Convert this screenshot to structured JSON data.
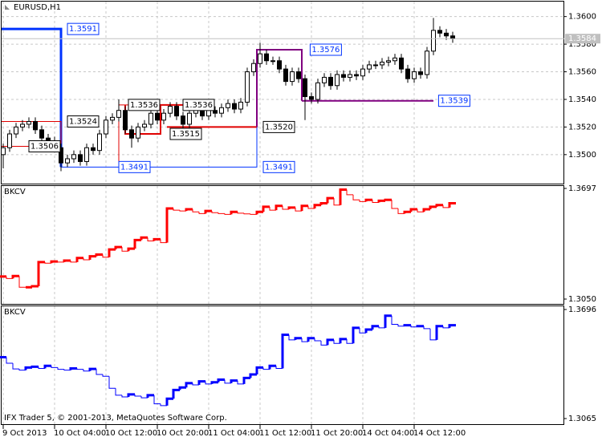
{
  "chart_data": [
    {
      "type": "candlestick",
      "title": "EURUSD,H1",
      "open": [
        1.35,
        1.3505,
        1.3515,
        1.352,
        1.3522,
        1.3524,
        1.3518,
        1.3512,
        1.351,
        1.3505,
        1.3494,
        1.3497,
        1.35,
        1.3495,
        1.3505,
        1.3503,
        1.3515,
        1.3525,
        1.3527,
        1.3532,
        1.3518,
        1.3512,
        1.352,
        1.3522,
        1.353,
        1.3525,
        1.353,
        1.3535,
        1.3528,
        1.3522,
        1.353,
        1.3533,
        1.3528,
        1.3532,
        1.353,
        1.3534,
        1.3537,
        1.3533,
        1.3538,
        1.356,
        1.3566,
        1.3573,
        1.3568,
        1.3568,
        1.3562,
        1.3553,
        1.356,
        1.3555,
        1.3542,
        1.354,
        1.3552,
        1.3556,
        1.355,
        1.3558,
        1.3556,
        1.3558,
        1.3557,
        1.3562,
        1.3565,
        1.3565,
        1.3567,
        1.3568,
        1.357,
        1.3562,
        1.3555,
        1.356,
        1.3558,
        1.3575,
        1.359,
        1.3588,
        1.3586
      ],
      "high": [
        1.3508,
        1.3518,
        1.3523,
        1.3525,
        1.3527,
        1.3527,
        1.3521,
        1.3515,
        1.3513,
        1.3508,
        1.35,
        1.3503,
        1.3503,
        1.3508,
        1.3508,
        1.3518,
        1.3528,
        1.353,
        1.354,
        1.3535,
        1.3521,
        1.3523,
        1.3525,
        1.3538,
        1.3533,
        1.3533,
        1.3538,
        1.3538,
        1.3531,
        1.3533,
        1.3536,
        1.3536,
        1.3535,
        1.3535,
        1.3537,
        1.354,
        1.354,
        1.3541,
        1.3563,
        1.3569,
        1.3581,
        1.3576,
        1.3571,
        1.3571,
        1.3565,
        1.3563,
        1.3563,
        1.3558,
        1.3545,
        1.3555,
        1.3559,
        1.3559,
        1.3561,
        1.3561,
        1.3561,
        1.3561,
        1.3565,
        1.3568,
        1.3568,
        1.357,
        1.3571,
        1.3573,
        1.3573,
        1.3565,
        1.3563,
        1.3563,
        1.3578,
        1.3599,
        1.3593,
        1.3591,
        1.3589
      ],
      "low": [
        1.349,
        1.3502,
        1.3512,
        1.3517,
        1.3519,
        1.3515,
        1.3509,
        1.3507,
        1.3502,
        1.3488,
        1.3491,
        1.3494,
        1.3492,
        1.3492,
        1.35,
        1.35,
        1.3512,
        1.3522,
        1.3524,
        1.3515,
        1.3505,
        1.3509,
        1.3517,
        1.3519,
        1.3522,
        1.3522,
        1.3527,
        1.3525,
        1.3519,
        1.3519,
        1.3527,
        1.3525,
        1.3525,
        1.3527,
        1.3527,
        1.3531,
        1.353,
        1.353,
        1.3535,
        1.3557,
        1.3563,
        1.3565,
        1.3565,
        1.3559,
        1.355,
        1.355,
        1.3552,
        1.3525,
        1.3537,
        1.3537,
        1.3549,
        1.3547,
        1.3547,
        1.3553,
        1.3553,
        1.3554,
        1.3554,
        1.3559,
        1.3562,
        1.3562,
        1.3564,
        1.3565,
        1.3559,
        1.3552,
        1.3552,
        1.3555,
        1.3555,
        1.3572,
        1.3585,
        1.3583,
        1.3581
      ],
      "close": [
        1.3505,
        1.3515,
        1.352,
        1.3522,
        1.3524,
        1.3518,
        1.3512,
        1.351,
        1.3505,
        1.3494,
        1.3497,
        1.35,
        1.3495,
        1.3505,
        1.3503,
        1.3515,
        1.3525,
        1.3527,
        1.3532,
        1.3518,
        1.3512,
        1.352,
        1.3522,
        1.353,
        1.3525,
        1.353,
        1.3535,
        1.3528,
        1.3522,
        1.353,
        1.3533,
        1.3528,
        1.3532,
        1.353,
        1.3534,
        1.3537,
        1.3533,
        1.3538,
        1.356,
        1.3566,
        1.3573,
        1.3568,
        1.3568,
        1.3562,
        1.3553,
        1.356,
        1.3555,
        1.3542,
        1.354,
        1.3552,
        1.3556,
        1.355,
        1.3558,
        1.3556,
        1.3558,
        1.3557,
        1.3562,
        1.3565,
        1.3565,
        1.3567,
        1.3568,
        1.357,
        1.3562,
        1.3555,
        1.356,
        1.3558,
        1.3575,
        1.359,
        1.3588,
        1.3586,
        1.3584
      ],
      "ylim": [
        1.3479,
        1.3612
      ],
      "yticks": [
        {
          "value": 1.35,
          "label": "1.3500"
        },
        {
          "value": 1.352,
          "label": "1.3520"
        },
        {
          "value": 1.354,
          "label": "1.3540"
        },
        {
          "value": 1.356,
          "label": "1.3560"
        },
        {
          "value": 1.358,
          "label": "1.3580"
        },
        {
          "value": 1.36,
          "label": "1.3600"
        }
      ],
      "grid": true,
      "bid": 1.3584,
      "channels": [
        {
          "color": "#0033ff",
          "width": 3,
          "x": [
            -0.5,
            9,
            9
          ],
          "y": [
            1.3591,
            1.3591,
            1.3491
          ]
        },
        {
          "color": "#0033ff",
          "width": 1,
          "x": [
            9,
            39.5,
            39.5
          ],
          "y": [
            1.3491,
            1.3491,
            1.3576
          ]
        },
        {
          "color": "#e00000",
          "width": 1,
          "x": [
            -0.5,
            9,
            9
          ],
          "y": [
            1.3524,
            1.3524,
            1.3491
          ]
        },
        {
          "color": "#e00000",
          "width": 1,
          "x": [
            -0.5,
            4
          ],
          "y": [
            1.3506,
            1.3506
          ]
        },
        {
          "color": "#e00000",
          "width": 1,
          "x": [
            18,
            18,
            24.5
          ],
          "y": [
            1.3491,
            1.3536,
            1.3536
          ]
        },
        {
          "color": "#e00000",
          "width": 2,
          "x": [
            19,
            19,
            24.5,
            24.5,
            28
          ],
          "y": [
            1.3536,
            1.3515,
            1.3515,
            1.3536,
            1.3536
          ]
        },
        {
          "color": "#e00000",
          "width": 2,
          "x": [
            25.5,
            39.5
          ],
          "y": [
            1.352,
            1.352
          ]
        },
        {
          "color": "#800080",
          "width": 2,
          "x": [
            39.5,
            39.5,
            46.5,
            46.5
          ],
          "y": [
            1.352,
            1.3576,
            1.3576,
            1.3539
          ]
        },
        {
          "color": "#800080",
          "width": 2,
          "x": [
            46.5,
            67
          ],
          "y": [
            1.3539,
            1.3539
          ]
        }
      ],
      "levels": [
        {
          "value": 1.3591,
          "x": 10,
          "color": "#0033ff"
        },
        {
          "value": 1.3524,
          "x": 10,
          "color": "#000000"
        },
        {
          "value": 1.3506,
          "x": 4,
          "color": "#000000"
        },
        {
          "value": 1.3491,
          "x": 18,
          "color": "#0033ff"
        },
        {
          "value": 1.3536,
          "x": 19.5,
          "color": "#000000"
        },
        {
          "value": 1.3536,
          "x": 28,
          "color": "#000000"
        },
        {
          "value": 1.3515,
          "x": 26,
          "color": "#000000"
        },
        {
          "value": 1.352,
          "label": "1.3520",
          "x": 40.5,
          "color": "#000000"
        },
        {
          "value": 1.3491,
          "x": 40.5,
          "color": "#0033ff"
        },
        {
          "value": 1.3576,
          "x": 47.8,
          "color": "#0033ff"
        },
        {
          "value": 1.3539,
          "x": 67.8,
          "color": "#0033ff"
        }
      ]
    },
    {
      "type": "step",
      "title": "BKCV",
      "color": "#ff0000",
      "values": [
        1.3182,
        1.317,
        1.3185,
        1.3119,
        1.3119,
        1.3125,
        1.3266,
        1.326,
        1.327,
        1.3266,
        1.3275,
        1.3266,
        1.329,
        1.328,
        1.33,
        1.331,
        1.3295,
        1.334,
        1.3354,
        1.333,
        1.3345,
        1.3395,
        1.341,
        1.339,
        1.34,
        1.338,
        1.358,
        1.357,
        1.3565,
        1.3575,
        1.356,
        1.355,
        1.3565,
        1.3555,
        1.355,
        1.3545,
        1.356,
        1.3552,
        1.3548,
        1.3545,
        1.356,
        1.359,
        1.357,
        1.3595,
        1.3575,
        1.3585,
        1.3565,
        1.3595,
        1.358,
        1.36,
        1.361,
        1.364,
        1.36,
        1.369,
        1.366,
        1.363,
        1.362,
        1.363,
        1.3615,
        1.3625,
        1.363,
        1.358,
        1.355,
        1.356,
        1.3575,
        1.356,
        1.3575,
        1.359,
        1.36,
        1.3585,
        1.361
      ],
      "ylim": [
        1.305,
        1.3697
      ],
      "yticks": [
        {
          "value": 1.305,
          "label": "1.3050"
        },
        1.3697
      ]
    },
    {
      "type": "step",
      "title": "BKCV",
      "color": "#0000ff",
      "values": [
        1.342,
        1.3385,
        1.3352,
        1.3345,
        1.336,
        1.3365,
        1.3355,
        1.337,
        1.336,
        1.335,
        1.3345,
        1.3355,
        1.335,
        1.334,
        1.3352,
        1.332,
        1.331,
        1.324,
        1.32,
        1.319,
        1.3205,
        1.3195,
        1.3185,
        1.32,
        1.315,
        1.314,
        1.318,
        1.323,
        1.3245,
        1.327,
        1.326,
        1.328,
        1.3265,
        1.3275,
        1.329,
        1.327,
        1.3285,
        1.3265,
        1.33,
        1.332,
        1.336,
        1.335,
        1.337,
        1.3355,
        1.355,
        1.352,
        1.353,
        1.351,
        1.353,
        1.3515,
        1.349,
        1.352,
        1.35,
        1.3525,
        1.35,
        1.359,
        1.356,
        1.358,
        1.36,
        1.359,
        1.366,
        1.361,
        1.36,
        1.3605,
        1.3595,
        1.36,
        1.3585,
        1.352,
        1.36,
        1.359,
        1.3605
      ],
      "ylim": [
        1.3065,
        1.3696
      ],
      "yticks": [
        1.3065,
        1.3696
      ],
      "annotation": "IFX Trader 5, © 2001-2013, MetaQuotes Software Corp.",
      "xticks": [
        {
          "value": 0,
          "label": "9 Oct 2013"
        },
        {
          "value": 8,
          "label": "10 Oct 04:00"
        },
        {
          "value": 16,
          "label": "10 Oct 12:00"
        },
        {
          "value": 24,
          "label": "10 Oct 20:00"
        },
        {
          "value": 32,
          "label": "11 Oct 04:00"
        },
        {
          "value": 40,
          "label": "11 Oct 12:00"
        },
        {
          "value": 48,
          "label": "11 Oct 20:00"
        },
        {
          "value": 56,
          "label": "14 Oct 04:00"
        },
        {
          "value": 64,
          "label": "14 Oct 12:00"
        }
      ]
    }
  ]
}
